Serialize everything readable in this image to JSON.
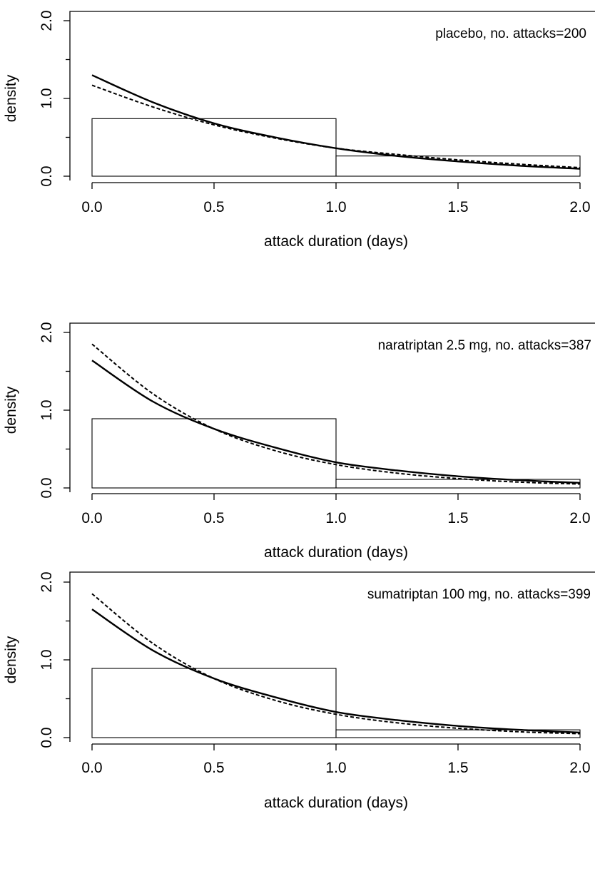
{
  "chart_data": [
    {
      "type": "histogram+line",
      "annotation": "placebo, no. attacks=200",
      "xlabel": "attack duration (days)",
      "ylabel": "density",
      "xlim": [
        0,
        2
      ],
      "ylim": [
        0,
        2
      ],
      "x_ticks": [
        "0.0",
        "0.5",
        "1.0",
        "1.5",
        "2.0"
      ],
      "y_ticks": [
        "0.0",
        "1.0",
        "2.0"
      ],
      "y_minor_ticks": [
        0.5,
        1.5
      ],
      "bars": [
        {
          "x0": 0,
          "x1": 1,
          "height": 0.74
        },
        {
          "x0": 1,
          "x1": 2,
          "height": 0.26
        }
      ],
      "series": [
        {
          "style": "solid",
          "x": [
            0,
            0.25,
            0.5,
            0.75,
            1.0,
            1.25,
            1.5,
            1.75,
            2.0
          ],
          "y": [
            1.3,
            0.95,
            0.68,
            0.5,
            0.36,
            0.26,
            0.19,
            0.135,
            0.095
          ]
        },
        {
          "style": "dashed",
          "x": [
            0,
            0.25,
            0.5,
            0.75,
            1.0,
            1.25,
            1.5,
            1.75,
            2.0
          ],
          "y": [
            1.17,
            0.89,
            0.66,
            0.49,
            0.36,
            0.28,
            0.21,
            0.155,
            0.11
          ]
        }
      ]
    },
    {
      "type": "histogram+line",
      "annotation": "naratriptan 2.5 mg, no. attacks=387",
      "xlabel": "attack duration (days)",
      "ylabel": "density",
      "xlim": [
        0,
        2
      ],
      "ylim": [
        0,
        2
      ],
      "x_ticks": [
        "0.0",
        "0.5",
        "1.0",
        "1.5",
        "2.0"
      ],
      "y_ticks": [
        "0.0",
        "1.0",
        "2.0"
      ],
      "y_minor_ticks": [
        0.5,
        1.5
      ],
      "bars": [
        {
          "x0": 0,
          "x1": 1,
          "height": 0.89
        },
        {
          "x0": 1,
          "x1": 2,
          "height": 0.11
        }
      ],
      "series": [
        {
          "style": "solid",
          "x": [
            0,
            0.25,
            0.5,
            0.75,
            1.0,
            1.25,
            1.5,
            1.75,
            2.0
          ],
          "y": [
            1.64,
            1.11,
            0.76,
            0.52,
            0.33,
            0.225,
            0.15,
            0.1,
            0.065
          ]
        },
        {
          "style": "dashed",
          "x": [
            0,
            0.25,
            0.5,
            0.75,
            1.0,
            1.25,
            1.5,
            1.75,
            2.0
          ],
          "y": [
            1.85,
            1.21,
            0.76,
            0.48,
            0.3,
            0.19,
            0.12,
            0.075,
            0.05
          ]
        }
      ]
    },
    {
      "type": "histogram+line",
      "annotation": "sumatriptan 100 mg, no. attacks=399",
      "xlabel": "attack duration (days)",
      "ylabel": "density",
      "xlim": [
        0,
        2
      ],
      "ylim": [
        0,
        2
      ],
      "x_ticks": [
        "0.0",
        "0.5",
        "1.0",
        "1.5",
        "2.0"
      ],
      "y_ticks": [
        "0.0",
        "1.0",
        "2.0"
      ],
      "y_minor_ticks": [
        0.5,
        1.5
      ],
      "bars": [
        {
          "x0": 0,
          "x1": 1,
          "height": 0.89
        },
        {
          "x0": 1,
          "x1": 2,
          "height": 0.1
        }
      ],
      "series": [
        {
          "style": "solid",
          "x": [
            0,
            0.25,
            0.5,
            0.75,
            1.0,
            1.25,
            1.5,
            1.75,
            2.0
          ],
          "y": [
            1.65,
            1.12,
            0.76,
            0.52,
            0.33,
            0.225,
            0.15,
            0.1,
            0.065
          ]
        },
        {
          "style": "dashed",
          "x": [
            0,
            0.25,
            0.5,
            0.75,
            1.0,
            1.25,
            1.5,
            1.75,
            2.0
          ],
          "y": [
            1.85,
            1.21,
            0.76,
            0.48,
            0.3,
            0.19,
            0.12,
            0.075,
            0.05
          ]
        }
      ]
    }
  ]
}
